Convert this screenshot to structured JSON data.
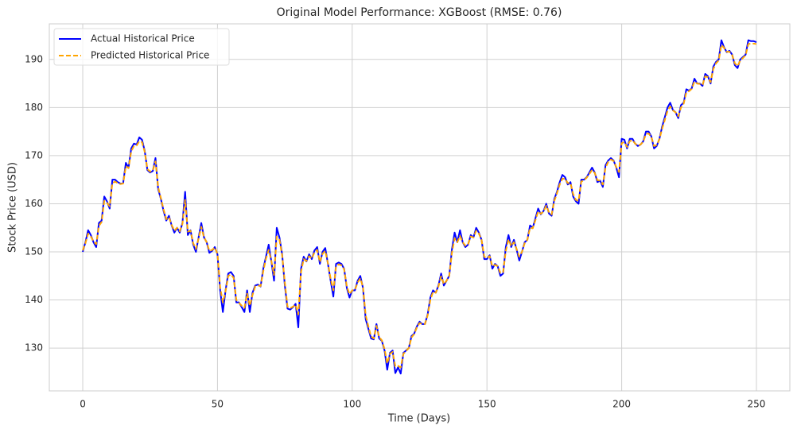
{
  "chart_data": {
    "type": "line",
    "title": "Original Model Performance: XGBoost (RMSE: 0.76)",
    "xlabel": "Time (Days)",
    "ylabel": "Stock Price (USD)",
    "x": [
      0,
      1,
      2,
      3,
      4,
      5,
      6,
      7,
      8,
      9,
      10,
      11,
      12,
      13,
      14,
      15,
      16,
      17,
      18,
      19,
      20,
      21,
      22,
      23,
      24,
      25,
      26,
      27,
      28,
      29,
      30,
      31,
      32,
      33,
      34,
      35,
      36,
      37,
      38,
      39,
      40,
      41,
      42,
      43,
      44,
      45,
      46,
      47,
      48,
      49,
      50,
      51,
      52,
      53,
      54,
      55,
      56,
      57,
      58,
      59,
      60,
      61,
      62,
      63,
      64,
      65,
      66,
      67,
      68,
      69,
      70,
      71,
      72,
      73,
      74,
      75,
      76,
      77,
      78,
      79,
      80,
      81,
      82,
      83,
      84,
      85,
      86,
      87,
      88,
      89,
      90,
      91,
      92,
      93,
      94,
      95,
      96,
      97,
      98,
      99,
      100,
      101,
      102,
      103,
      104,
      105,
      106,
      107,
      108,
      109,
      110,
      111,
      112,
      113,
      114,
      115,
      116,
      117,
      118,
      119,
      120,
      121,
      122,
      123,
      124,
      125,
      126,
      127,
      128,
      129,
      130,
      131,
      132,
      133,
      134,
      135,
      136,
      137,
      138,
      139,
      140,
      141,
      142,
      143,
      144,
      145,
      146,
      147,
      148,
      149,
      150,
      151,
      152,
      153,
      154,
      155,
      156,
      157,
      158,
      159,
      160,
      161,
      162,
      163,
      164,
      165,
      166,
      167,
      168,
      169,
      170,
      171,
      172,
      173,
      174,
      175,
      176,
      177,
      178,
      179,
      180,
      181,
      182,
      183,
      184,
      185,
      186,
      187,
      188,
      189,
      190,
      191,
      192,
      193,
      194,
      195,
      196,
      197,
      198,
      199,
      200,
      201,
      202,
      203,
      204,
      205,
      206,
      207,
      208,
      209,
      210,
      211,
      212,
      213,
      214,
      215,
      216,
      217,
      218,
      219,
      220,
      221,
      222,
      223,
      224,
      225,
      226,
      227,
      228,
      229,
      230,
      231,
      232,
      233,
      234,
      235,
      236,
      237,
      238,
      239,
      240,
      241,
      242,
      243,
      244,
      245,
      246,
      247,
      248,
      249,
      250
    ],
    "series": [
      {
        "name": "Actual Historical Price",
        "color": "#0000ff",
        "linestyle": "solid",
        "values": [
          150,
          152,
          154.5,
          153.5,
          152,
          151,
          156,
          156.5,
          161.5,
          160.5,
          159,
          165,
          165,
          164.5,
          164.2,
          164.3,
          168.5,
          167.5,
          171.5,
          172.5,
          172.3,
          173.8,
          173.3,
          171,
          167,
          166.5,
          166.8,
          169.5,
          163,
          161,
          158.5,
          156.5,
          157.5,
          155.5,
          154,
          155,
          154,
          156,
          162.5,
          153.5,
          154.5,
          151.5,
          150,
          153,
          156,
          153,
          152,
          149.8,
          150.2,
          151,
          149.5,
          142,
          137.5,
          142,
          145.5,
          145.8,
          145,
          139.5,
          139.5,
          138.5,
          137.5,
          142,
          137.5,
          141.5,
          143,
          143.2,
          142.8,
          146.5,
          149,
          151.5,
          148,
          144,
          155,
          153,
          149.5,
          143,
          138.2,
          138,
          138.5,
          139.2,
          134.3,
          146.5,
          149,
          148,
          149.5,
          148.5,
          150.3,
          151,
          147.5,
          150,
          150.8,
          147.5,
          144,
          140.7,
          147.5,
          147.8,
          147.5,
          146.5,
          142.5,
          140.5,
          142,
          142,
          144,
          145,
          142.5,
          136,
          134,
          132,
          131.8,
          135,
          132,
          131.5,
          129.5,
          125.5,
          129,
          129.5,
          124.8,
          126,
          124.7,
          129,
          129.5,
          130,
          132.5,
          133,
          134.5,
          135.5,
          135,
          135,
          137,
          140.5,
          142,
          141.5,
          143,
          145.5,
          143,
          144,
          145,
          150.5,
          154,
          152,
          154.5,
          152,
          151,
          151.5,
          153.5,
          153,
          155,
          154,
          152.5,
          148.5,
          148.5,
          149.3,
          146.5,
          147.5,
          147,
          145,
          145.5,
          151,
          153.5,
          151,
          152.5,
          150.5,
          148.2,
          150,
          152,
          152.5,
          155.5,
          155,
          157,
          159,
          157.8,
          158.5,
          160,
          158,
          157.5,
          161,
          162.5,
          164.5,
          166,
          165.5,
          164,
          164.5,
          161.5,
          160.5,
          160,
          165,
          165,
          165.5,
          166.5,
          167.5,
          166.5,
          164.5,
          164.8,
          163.5,
          168,
          169,
          169.5,
          169,
          167.5,
          165.5,
          173.5,
          173.3,
          171.5,
          173.5,
          173.5,
          172.5,
          172,
          172.3,
          173,
          175,
          175,
          174,
          171.5,
          172,
          173.5,
          176,
          178,
          180,
          181,
          179.5,
          179,
          177.8,
          180.5,
          181,
          183.8,
          183.5,
          184,
          186,
          185,
          185,
          184.5,
          187,
          186.5,
          185,
          188.5,
          189.5,
          190,
          194,
          192.5,
          191.5,
          191.8,
          191,
          188.8,
          188.2,
          190,
          190.5,
          191,
          194,
          193.8,
          193.8,
          193.6
        ]
      },
      {
        "name": "Predicted Historical Price",
        "color": "#ffa500",
        "linestyle": "dashed",
        "values": [
          150.3,
          151.8,
          153.8,
          153.2,
          152.2,
          151.6,
          155.4,
          156.2,
          160.6,
          160.2,
          159.5,
          164.3,
          164.6,
          164.3,
          164.1,
          164.2,
          167.8,
          167.4,
          170.9,
          172,
          172.1,
          173,
          172.8,
          170.8,
          167.2,
          166.7,
          166.9,
          168.8,
          163.4,
          161.2,
          158.8,
          156.8,
          157.2,
          155.6,
          154.4,
          155,
          154.3,
          155.8,
          160.8,
          154.2,
          154.4,
          151.8,
          150.6,
          152.8,
          155.2,
          153,
          152,
          150.2,
          150.4,
          150.9,
          149.6,
          142.6,
          139.5,
          141.8,
          145,
          145.3,
          144.6,
          140,
          139.4,
          138.8,
          138.4,
          141.3,
          138.8,
          141,
          142.8,
          143,
          142.9,
          146,
          148.6,
          150.4,
          148.1,
          145.2,
          153.2,
          152.5,
          149.3,
          143.6,
          138.6,
          138.3,
          138.6,
          139,
          137,
          145.8,
          148.5,
          148.1,
          149.1,
          148.6,
          149.9,
          150.4,
          147.9,
          149.6,
          150.2,
          147.6,
          144.4,
          142,
          147,
          147.4,
          147.2,
          146.4,
          142.8,
          141.2,
          142,
          142.1,
          143.6,
          144.5,
          142.7,
          136.8,
          134.5,
          132.4,
          132,
          134.6,
          132.3,
          131.6,
          129.8,
          126.8,
          128.8,
          129.2,
          126.2,
          126.3,
          126,
          128.8,
          129.4,
          130,
          132.2,
          132.9,
          134.3,
          135.2,
          135,
          135,
          136.8,
          140,
          141.7,
          141.5,
          142.8,
          144.9,
          143.3,
          144,
          145,
          149.8,
          152.8,
          152,
          153.3,
          152,
          151.3,
          151.6,
          153.2,
          153,
          154.4,
          153.8,
          152.5,
          149,
          148.7,
          149.1,
          147,
          147.3,
          147,
          145.6,
          145.8,
          150.2,
          152.6,
          151.2,
          152,
          150.6,
          149,
          150,
          151.8,
          152.5,
          155,
          154.9,
          156.6,
          158.4,
          157.9,
          158.4,
          159.6,
          158.2,
          157.8,
          160.6,
          162.2,
          164,
          165.2,
          165.2,
          164.3,
          164.3,
          162,
          160.8,
          160.6,
          164.6,
          164.9,
          165.4,
          166.2,
          167,
          166.4,
          164.9,
          164.8,
          164,
          167.5,
          168.7,
          169.2,
          168.9,
          167.6,
          166.6,
          172.6,
          172.8,
          171.8,
          173,
          173.2,
          172.5,
          172.1,
          172.3,
          172.9,
          174.5,
          174.6,
          173.9,
          172,
          172.2,
          173.4,
          175.6,
          177.4,
          179.3,
          180.2,
          179.4,
          179,
          178.2,
          180,
          180.8,
          183.2,
          183.4,
          183.9,
          185.4,
          185,
          184.9,
          184.7,
          186.5,
          186.3,
          185.3,
          188,
          189.2,
          189.8,
          193,
          192.4,
          191.6,
          191.6,
          190.9,
          189.2,
          188.6,
          189.8,
          190.3,
          190.9,
          193.2,
          193.3,
          193.3,
          193.2
        ]
      }
    ],
    "xlim": [
      -12.4,
      262.4
    ],
    "ylim": [
      121.1,
      197.4
    ],
    "xticks": [
      0,
      50,
      100,
      150,
      200,
      250
    ],
    "yticks": [
      130,
      140,
      150,
      160,
      170,
      180,
      190
    ],
    "grid": true,
    "legend": "upper left"
  }
}
